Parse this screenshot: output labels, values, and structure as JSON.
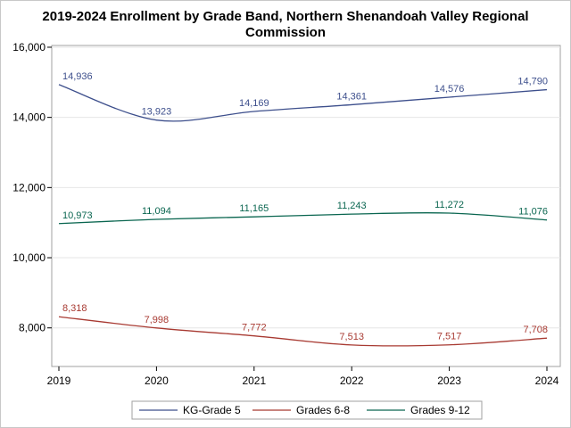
{
  "chart_data": {
    "type": "line",
    "title_line1": "2019-2024 Enrollment by Grade Band, Northern Shenandoah Valley Regional",
    "title_line2": "Commission",
    "xlabel": "",
    "ylabel": "",
    "x": [
      2019,
      2020,
      2021,
      2022,
      2023,
      2024
    ],
    "x_tick_labels": [
      "2019",
      "2020",
      "2021",
      "2022",
      "2023",
      "2024"
    ],
    "ylim": [
      6900,
      16050
    ],
    "y_ticks": [
      8000,
      10000,
      12000,
      14000,
      16000
    ],
    "y_tick_labels": [
      "8,000",
      "10,000",
      "12,000",
      "14,000",
      "16,000"
    ],
    "grid": "horizontal",
    "legend_position": "bottom",
    "series": [
      {
        "name": "KG-Grade 5",
        "color": "#3d4f8c",
        "values": [
          14936,
          13923,
          14169,
          14361,
          14576,
          14790
        ],
        "labels": [
          "14,936",
          "13,923",
          "14,169",
          "14,361",
          "14,576",
          "14,790"
        ]
      },
      {
        "name": "Grades 6-8",
        "color": "#a83a32",
        "values": [
          8318,
          7998,
          7772,
          7513,
          7517,
          7708
        ],
        "labels": [
          "8,318",
          "7,998",
          "7,772",
          "7,513",
          "7,517",
          "7,708"
        ]
      },
      {
        "name": "Grades 9-12",
        "color": "#0a6650",
        "values": [
          10973,
          11094,
          11165,
          11243,
          11272,
          11076
        ],
        "labels": [
          "10,973",
          "11,094",
          "11,165",
          "11,243",
          "11,272",
          "11,076"
        ]
      }
    ]
  }
}
